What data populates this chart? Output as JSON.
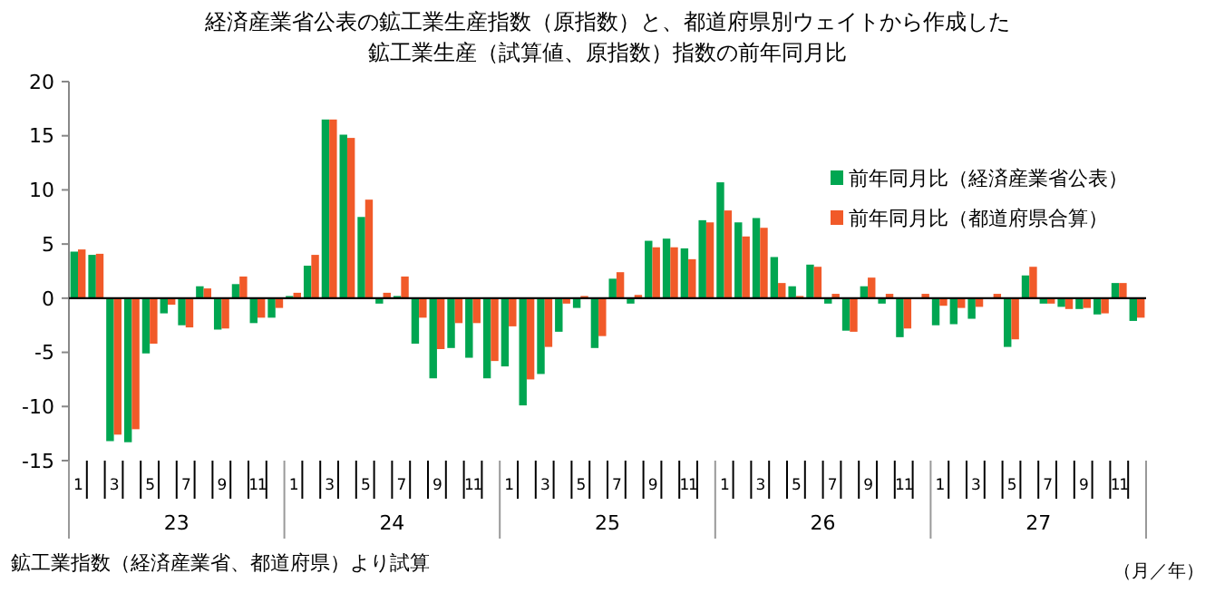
{
  "chart_data": {
    "type": "bar",
    "title": "経済産業省公表の鉱工業生産指数（原指数）と、都道府県別ウェイトから作成した",
    "subtitle": "鉱工業生産（試算値、原指数）指数の前年同月比",
    "xlabel": "（月／年）",
    "categories": [
      "1",
      null,
      "3",
      null,
      "5",
      null,
      "7",
      null,
      "9",
      null,
      "11",
      null,
      "1",
      null,
      "3",
      null,
      "5",
      null,
      "7",
      null,
      "9",
      null,
      "11",
      null,
      "1",
      null,
      "3",
      null,
      "5",
      null,
      "7",
      null,
      "9",
      null,
      "11",
      null,
      "1",
      null,
      "3",
      null,
      "5",
      null,
      "7",
      null,
      "9",
      null,
      "11",
      null,
      "1",
      null,
      "3",
      null,
      "5",
      null,
      "7",
      null,
      "9",
      null,
      "11",
      null
    ],
    "series": [
      {
        "name": "前年同月比（経済産業省公表）",
        "color": "#00a651",
        "values": [
          4.3,
          4.0,
          -13.2,
          -13.3,
          -5.1,
          -1.4,
          -2.5,
          1.1,
          -2.9,
          1.3,
          -2.3,
          -1.8,
          0.2,
          3.0,
          16.5,
          15.1,
          7.5,
          -0.5,
          0.2,
          -4.2,
          -7.4,
          -4.6,
          -5.5,
          -7.4,
          -6.3,
          -9.9,
          -7.0,
          -3.1,
          -0.9,
          -4.6,
          1.8,
          -0.5,
          5.3,
          5.5,
          4.6,
          7.2,
          10.7,
          7.0,
          7.4,
          3.8,
          1.1,
          3.1,
          -0.5,
          -3.0,
          1.1,
          -0.5,
          -3.6,
          0.0,
          -2.5,
          -2.4,
          -1.9,
          0.0,
          -4.5,
          2.1,
          -0.5,
          -0.8,
          -1.0,
          -1.5,
          1.4,
          -2.1
        ]
      },
      {
        "name": "前年同月比（都道府県合算）",
        "color": "#f15a29",
        "values": [
          4.5,
          4.1,
          -12.6,
          -12.1,
          -4.2,
          -0.6,
          -2.7,
          0.9,
          -2.8,
          2.0,
          -1.8,
          -0.9,
          0.5,
          4.0,
          16.5,
          14.8,
          9.1,
          0.5,
          2.0,
          -1.8,
          -4.7,
          -2.3,
          -2.3,
          -5.8,
          -2.6,
          -7.5,
          -4.5,
          -0.5,
          0.2,
          -3.5,
          2.4,
          0.3,
          4.7,
          4.7,
          3.6,
          7.0,
          8.1,
          5.7,
          6.5,
          1.4,
          0.2,
          2.9,
          0.4,
          -3.1,
          1.9,
          0.4,
          -2.8,
          0.4,
          -0.7,
          -0.9,
          -0.8,
          0.4,
          -3.8,
          2.9,
          -0.5,
          -1.0,
          -0.9,
          -1.4,
          1.4,
          -1.8
        ]
      }
    ],
    "ylim": [
      -15,
      20
    ],
    "yticks": [
      -15,
      -10,
      -5,
      0,
      5,
      10,
      15,
      20
    ],
    "legend": "right",
    "annotations": [
      "鉱工業指数（経済産業省、都道府県）より試算",
      "23",
      "24",
      "25",
      "26",
      "27"
    ]
  }
}
